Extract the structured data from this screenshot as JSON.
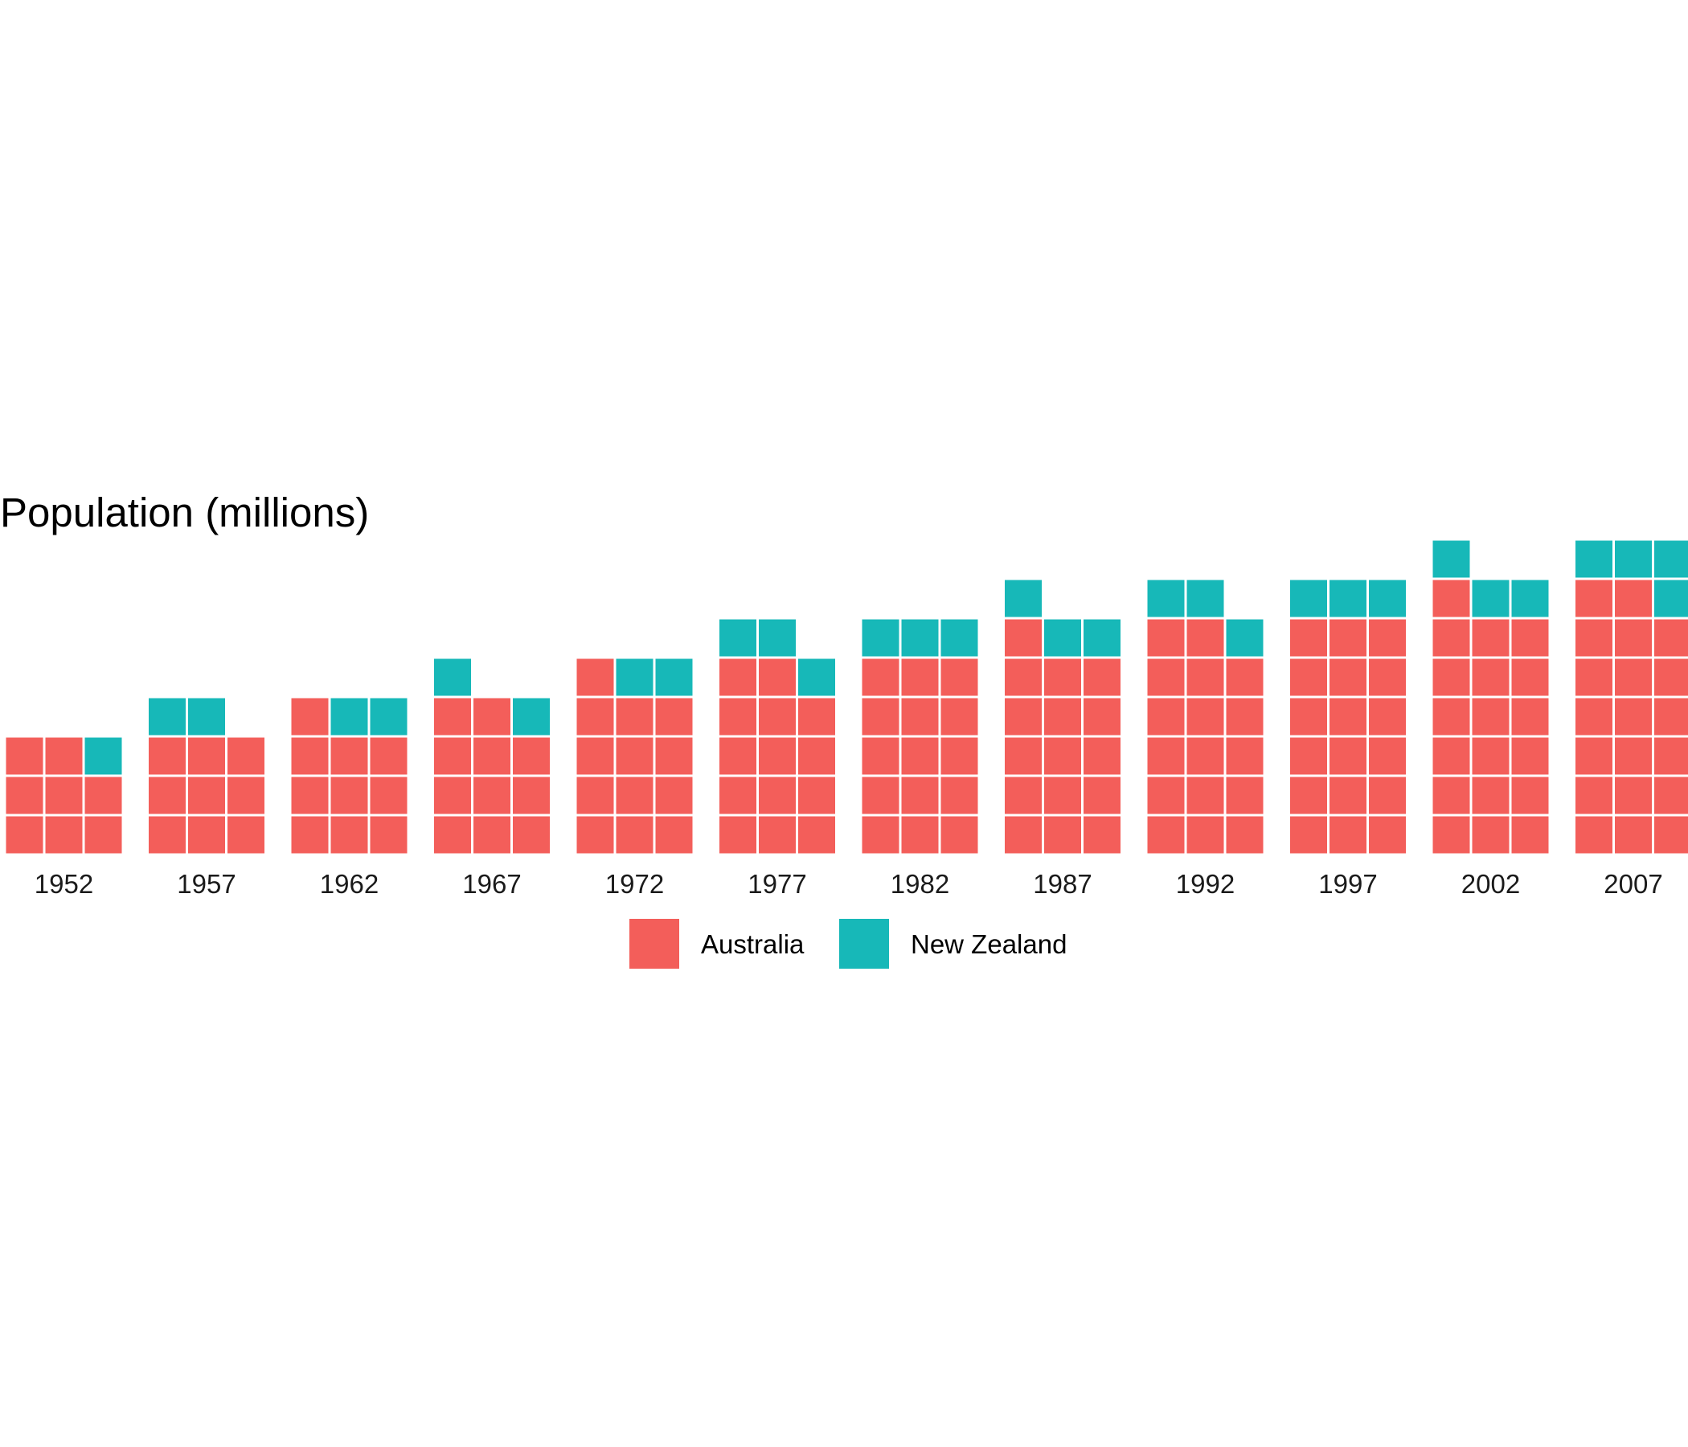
{
  "chart_data": {
    "type": "waffle",
    "title": "Population (millions)",
    "unit_per_tile": 1,
    "tiles_per_row": 3,
    "categories": [
      "1952",
      "1957",
      "1962",
      "1967",
      "1972",
      "1977",
      "1982",
      "1987",
      "1992",
      "1997",
      "2002",
      "2007"
    ],
    "series": [
      {
        "name": "Australia",
        "color": "#F35E5A",
        "values": [
          8,
          9,
          10,
          11,
          13,
          14,
          15,
          16,
          17,
          18,
          19,
          20
        ]
      },
      {
        "name": "New Zealand",
        "color": "#17B8B8",
        "values": [
          1,
          2,
          2,
          2,
          2,
          3,
          3,
          3,
          3,
          3,
          3,
          4
        ]
      }
    ],
    "legend": {
      "position": "bottom"
    },
    "grid": false,
    "tile_border_color": "#ffffff"
  }
}
